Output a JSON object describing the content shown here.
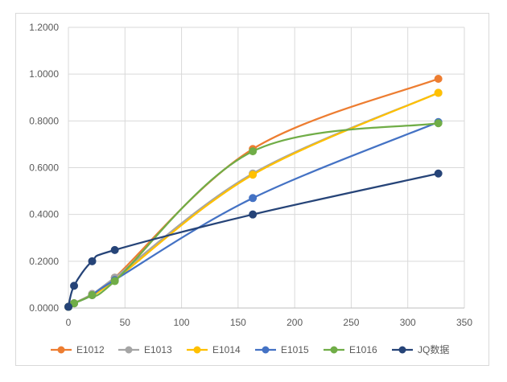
{
  "chart_data": {
    "type": "scatter",
    "title": "",
    "xlabel": "",
    "ylabel": "",
    "xlim": [
      0,
      350
    ],
    "ylim": [
      0,
      1.2
    ],
    "x_ticks": [
      "0",
      "50",
      "100",
      "150",
      "200",
      "250",
      "300",
      "350"
    ],
    "y_ticks": [
      "0.0000",
      "0.2000",
      "0.4000",
      "0.6000",
      "0.8000",
      "1.0000",
      "1.2000"
    ],
    "grid": true,
    "legend_position": "bottom",
    "smooth_lines": true,
    "series": [
      {
        "name": "E1012",
        "color": "#ED7D31",
        "points": [
          [
            0,
            0.005
          ],
          [
            5,
            0.02
          ],
          [
            21,
            0.06
          ],
          [
            41,
            0.13
          ],
          [
            163,
            0.68
          ],
          [
            327,
            0.98
          ]
        ]
      },
      {
        "name": "E1013",
        "color": "#A5A5A5",
        "points": [
          [
            0,
            0.005
          ],
          [
            5,
            0.02
          ],
          [
            21,
            0.06
          ],
          [
            41,
            0.13
          ],
          [
            163,
            0.575
          ],
          [
            327,
            0.92
          ]
        ]
      },
      {
        "name": "E1014",
        "color": "#FFC000",
        "points": [
          [
            0,
            0.005
          ],
          [
            5,
            0.02
          ],
          [
            21,
            0.055
          ],
          [
            41,
            0.12
          ],
          [
            163,
            0.57
          ],
          [
            327,
            0.92
          ]
        ]
      },
      {
        "name": "E1015",
        "color": "#4472C4",
        "points": [
          [
            0,
            0.005
          ],
          [
            5,
            0.02
          ],
          [
            21,
            0.055
          ],
          [
            41,
            0.12
          ],
          [
            163,
            0.47
          ],
          [
            327,
            0.795
          ]
        ]
      },
      {
        "name": "E1016",
        "color": "#70AD47",
        "points": [
          [
            0,
            0.005
          ],
          [
            5,
            0.02
          ],
          [
            21,
            0.055
          ],
          [
            41,
            0.115
          ],
          [
            163,
            0.67
          ],
          [
            327,
            0.79
          ]
        ]
      },
      {
        "name": "JQ数据",
        "color": "#264478",
        "points": [
          [
            0,
            0.005
          ],
          [
            5,
            0.095
          ],
          [
            21,
            0.2
          ],
          [
            41,
            0.248
          ],
          [
            163,
            0.4
          ],
          [
            327,
            0.575
          ]
        ]
      }
    ]
  }
}
